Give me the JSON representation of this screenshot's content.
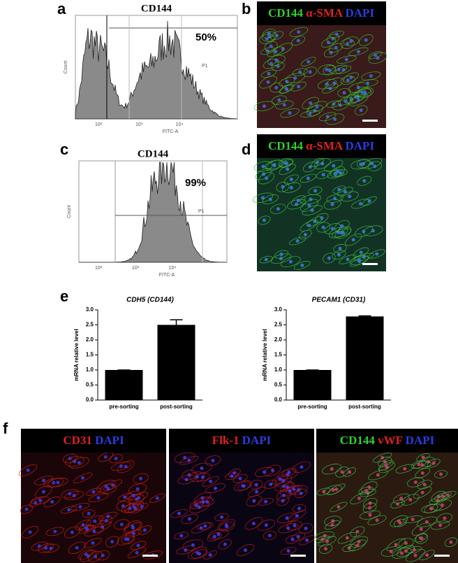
{
  "panels": {
    "a": {
      "letter": "a",
      "title": "CD144",
      "percent": "50%",
      "x_label": "FITC-A",
      "y_label": "Count",
      "gate": "P1",
      "xticks": [
        "10²",
        "10³",
        "10⁴"
      ]
    },
    "b": {
      "letter": "b",
      "stains": [
        {
          "text": "CD144",
          "color": "#2fd12f"
        },
        {
          "text": "α-SMA",
          "color": "#e02020"
        },
        {
          "text": "DAPI",
          "color": "#2a3de0"
        }
      ]
    },
    "c": {
      "letter": "c",
      "title": "CD144",
      "percent": "99%",
      "x_label": "FITC-A",
      "y_label": "Count",
      "gate": "P1",
      "xticks": [
        "10²",
        "10³",
        "10⁴"
      ]
    },
    "d": {
      "letter": "d",
      "stains": [
        {
          "text": "CD144",
          "color": "#2fd12f"
        },
        {
          "text": "α-SMA",
          "color": "#e02020"
        },
        {
          "text": "DAPI",
          "color": "#2a3de0"
        }
      ]
    },
    "e": {
      "letter": "e"
    },
    "f": {
      "letter": "f",
      "images": [
        [
          {
            "text": "CD31",
            "color": "#e02020"
          },
          {
            "text": "DAPI",
            "color": "#2a3de0"
          }
        ],
        [
          {
            "text": "Flk-1",
            "color": "#e02020"
          },
          {
            "text": "DAPI",
            "color": "#2a3de0"
          }
        ],
        [
          {
            "text": "CD144",
            "color": "#2fd12f"
          },
          {
            "text": "vWF",
            "color": "#e02020"
          },
          {
            "text": "DAPI",
            "color": "#2a3de0"
          }
        ]
      ]
    }
  },
  "chart_data": [
    {
      "type": "bar",
      "title": "CDH5 (CD144)",
      "y_label": "mRNA relative level",
      "categories": [
        "pre-sorting",
        "post-sorting"
      ],
      "values": [
        1.0,
        2.5
      ],
      "errors": [
        0,
        0.17
      ],
      "color": "#000000",
      "ylim": [
        0,
        3
      ],
      "yticks": [
        {
          "value": 0,
          "label": "0.0"
        },
        0.5,
        {
          "value": 1,
          "label": "1.0"
        },
        1.5,
        {
          "value": 2,
          "label": "2.0"
        },
        2.5,
        {
          "value": 3,
          "label": "3.0"
        }
      ]
    },
    {
      "type": "bar",
      "title": "PECAM1 (CD31)",
      "y_label": "mRNA relative level",
      "categories": [
        "pre-sorting",
        "post-sorting"
      ],
      "values": [
        1.0,
        2.78
      ],
      "errors": [
        0,
        0.02
      ],
      "color": "#000000",
      "ylim": [
        0,
        3
      ],
      "yticks": [
        {
          "value": 0,
          "label": "0.0"
        },
        0.5,
        {
          "value": 1,
          "label": "1.0"
        },
        1.5,
        {
          "value": 2,
          "label": "2.0"
        },
        2.5,
        {
          "value": 3,
          "label": "3.0"
        }
      ]
    }
  ]
}
